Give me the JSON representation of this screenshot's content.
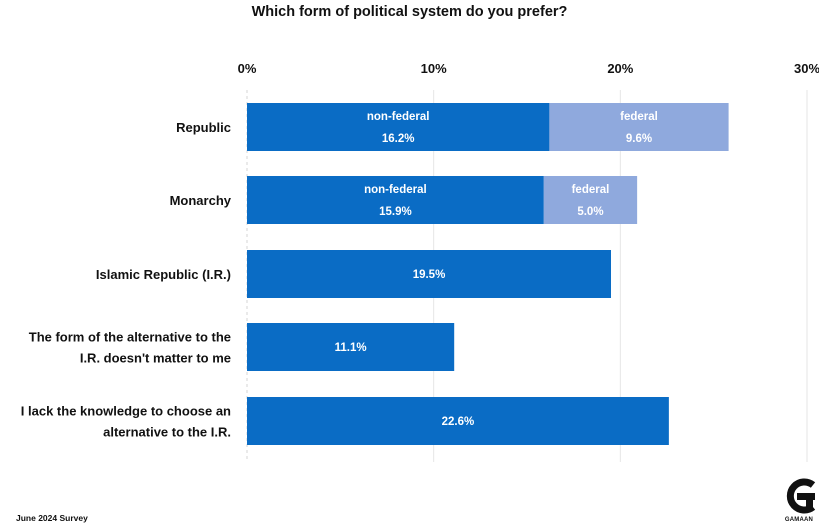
{
  "chart_data": {
    "type": "bar",
    "orientation": "horizontal",
    "stacked": true,
    "title": "Which form of political system do you prefer?",
    "xlim": [
      0,
      30
    ],
    "x_ticks": [
      "0%",
      "10%",
      "20%",
      "30%"
    ],
    "x_tick_values": [
      0,
      10,
      20,
      30
    ],
    "grid": true,
    "colors": {
      "primary": "#0a6cc5",
      "secondary": "#8fa9dd"
    },
    "categories": [
      [
        "Republic"
      ],
      [
        "Monarchy"
      ],
      [
        "Islamic Republic (I.R.)"
      ],
      [
        "The form of the alternative to the",
        "I.R. doesn't matter to me"
      ],
      [
        "I lack the knowledge to choose an",
        "alternative to the I.R."
      ]
    ],
    "bars": [
      [
        {
          "name": "non-federal",
          "value": 16.2,
          "label": "16.2%",
          "color": "#0a6cc5"
        },
        {
          "name": "federal",
          "value": 9.6,
          "label": "9.6%",
          "color": "#8fa9dd"
        }
      ],
      [
        {
          "name": "non-federal",
          "value": 15.9,
          "label": "15.9%",
          "color": "#0a6cc5"
        },
        {
          "name": "federal",
          "value": 5.0,
          "label": "5.0%",
          "color": "#8fa9dd"
        }
      ],
      [
        {
          "value": 19.5,
          "label": "19.5%",
          "color": "#0a6cc5"
        }
      ],
      [
        {
          "value": 11.1,
          "label": "11.1%",
          "color": "#0a6cc5"
        }
      ],
      [
        {
          "value": 22.6,
          "label": "22.6%",
          "color": "#0a6cc5"
        }
      ]
    ]
  },
  "footer": {
    "note": "June  2024 Survey",
    "brand": "GAMAAN"
  }
}
